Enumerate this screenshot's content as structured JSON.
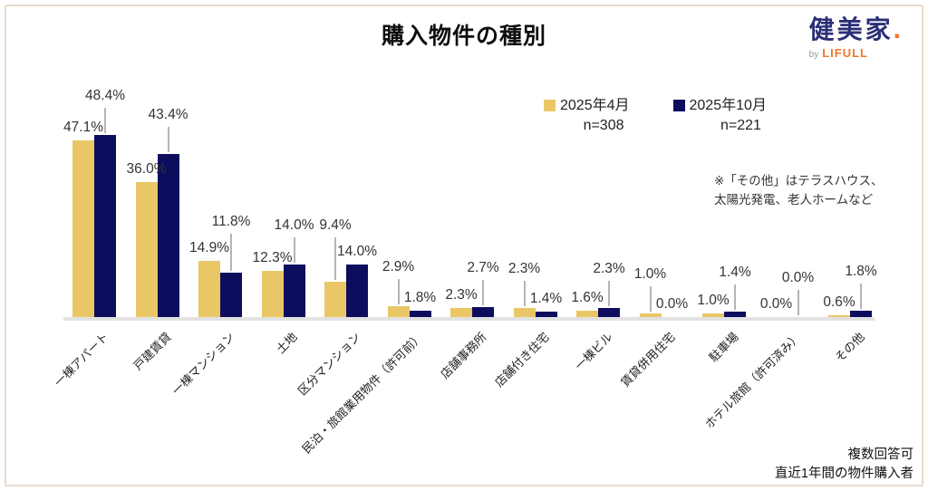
{
  "title": "購入物件の種別",
  "logo": {
    "brand": "健美家",
    "dot": ".",
    "by": "by",
    "company": "LIFULL"
  },
  "legend": [
    {
      "label": "2025年4月",
      "n": "n=308",
      "color": "#e9c766"
    },
    {
      "label": "2025年10月",
      "n": "n=221",
      "color": "#0d0d5e"
    }
  ],
  "note_lines": [
    "※「その他」はテラスハウス、",
    "太陽光発電、老人ホームなど"
  ],
  "footer_lines": [
    "複数回答可",
    "直近1年間の物件購入者"
  ],
  "chart_data": {
    "type": "bar",
    "title": "購入物件の種別",
    "unit": "%",
    "ylim": [
      0,
      50
    ],
    "grid": false,
    "legend_position": "top-right",
    "categories": [
      "一棟アパート",
      "戸建賃貸",
      "一棟マンション",
      "土地",
      "区分マンション",
      "民泊・旅館業用物件（許可前）",
      "店舗事務所",
      "店舗付き住宅",
      "一棟ビル",
      "賃貸併用住宅",
      "駐車場",
      "ホテル旅館（許可済み）",
      "その他"
    ],
    "series": [
      {
        "name": "2025年4月",
        "n": 308,
        "color": "#e9c766",
        "values": [
          47.1,
          36.0,
          14.9,
          12.3,
          9.4,
          2.9,
          2.3,
          2.3,
          1.6,
          1.0,
          1.0,
          0.0,
          0.6
        ]
      },
      {
        "name": "2025年10月",
        "n": 221,
        "color": "#0d0d5e",
        "values": [
          48.4,
          43.4,
          11.8,
          14.0,
          14.0,
          1.8,
          2.7,
          1.4,
          2.3,
          0.0,
          1.4,
          0.0,
          1.8
        ]
      }
    ],
    "raised_labels": [
      "oct",
      "oct",
      "oct",
      "oct",
      "apr",
      "apr",
      "oct",
      "apr",
      "oct",
      "apr",
      "oct",
      "oct",
      "oct"
    ]
  }
}
